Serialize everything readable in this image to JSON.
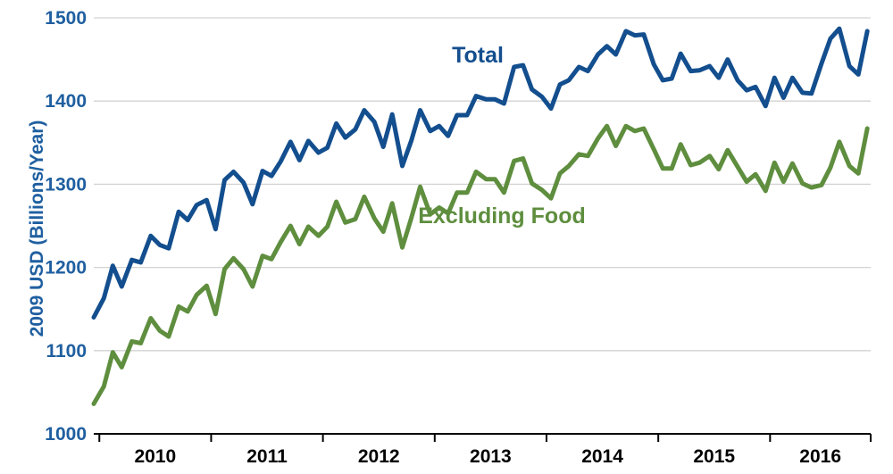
{
  "chart_data": {
    "type": "line",
    "title": "",
    "xlabel": "",
    "ylabel": "2009 USD (Billions/Year)",
    "ylim": [
      1000,
      1500
    ],
    "yticks": [
      "1000",
      "1100",
      "1200",
      "1300",
      "1400",
      "1500"
    ],
    "x_categories": [
      "2010",
      "2011",
      "2012",
      "2013",
      "2014",
      "2015",
      "2016"
    ],
    "x_range": [
      2009.95,
      2016.9
    ],
    "grid": true,
    "colors": {
      "total": "#134e8e",
      "excluding_food": "#5e8e3e",
      "axis_text": "#1f5fa0",
      "grid": "#d3d3d3"
    },
    "series": [
      {
        "name": "Total",
        "color": "#134e8e",
        "x": [
          2009.95,
          2010.04,
          2010.12,
          2010.2,
          2010.29,
          2010.37,
          2010.46,
          2010.54,
          2010.62,
          2010.71,
          2010.79,
          2010.87,
          2010.96,
          2011.04,
          2011.12,
          2011.2,
          2011.29,
          2011.37,
          2011.46,
          2011.54,
          2011.62,
          2011.71,
          2011.79,
          2011.87,
          2011.96,
          2012.04,
          2012.12,
          2012.2,
          2012.29,
          2012.37,
          2012.46,
          2012.54,
          2012.62,
          2012.71,
          2012.79,
          2012.87,
          2012.96,
          2013.04,
          2013.12,
          2013.2,
          2013.29,
          2013.37,
          2013.46,
          2013.54,
          2013.62,
          2013.71,
          2013.79,
          2013.87,
          2013.96,
          2014.04,
          2014.12,
          2014.2,
          2014.29,
          2014.37,
          2014.46,
          2014.54,
          2014.62,
          2014.71,
          2014.79,
          2014.87,
          2014.96,
          2015.04,
          2015.12,
          2015.2,
          2015.29,
          2015.37,
          2015.46,
          2015.54,
          2015.62,
          2015.71,
          2015.79,
          2015.87,
          2015.96,
          2016.04,
          2016.12,
          2016.2,
          2016.29,
          2016.37,
          2016.46,
          2016.54,
          2016.62,
          2016.71,
          2016.79,
          2016.87
        ],
        "values": [
          1140,
          1163,
          1202,
          1177,
          1209,
          1206,
          1238,
          1227,
          1223,
          1267,
          1257,
          1275,
          1281,
          1246,
          1305,
          1315,
          1302,
          1276,
          1316,
          1310,
          1327,
          1351,
          1329,
          1352,
          1338,
          1344,
          1373,
          1356,
          1366,
          1389,
          1375,
          1345,
          1384,
          1322,
          1352,
          1389,
          1364,
          1370,
          1358,
          1383,
          1383,
          1406,
          1402,
          1402,
          1397,
          1441,
          1443,
          1414,
          1405,
          1391,
          1420,
          1425,
          1441,
          1436,
          1456,
          1466,
          1456,
          1484,
          1479,
          1480,
          1444,
          1425,
          1427,
          1457,
          1436,
          1437,
          1442,
          1428,
          1450,
          1425,
          1413,
          1417,
          1394,
          1428,
          1404,
          1428,
          1410,
          1409,
          1445,
          1475,
          1487,
          1442,
          1432,
          1484
        ]
      },
      {
        "name": "Excluding Food",
        "color": "#5e8e3e",
        "x": [
          2009.95,
          2010.04,
          2010.12,
          2010.2,
          2010.29,
          2010.37,
          2010.46,
          2010.54,
          2010.62,
          2010.71,
          2010.79,
          2010.87,
          2010.96,
          2011.04,
          2011.12,
          2011.2,
          2011.29,
          2011.37,
          2011.46,
          2011.54,
          2011.62,
          2011.71,
          2011.79,
          2011.87,
          2011.96,
          2012.04,
          2012.12,
          2012.2,
          2012.29,
          2012.37,
          2012.46,
          2012.54,
          2012.62,
          2012.71,
          2012.79,
          2012.87,
          2012.96,
          2013.04,
          2013.12,
          2013.2,
          2013.29,
          2013.37,
          2013.46,
          2013.54,
          2013.62,
          2013.71,
          2013.79,
          2013.87,
          2013.96,
          2014.04,
          2014.12,
          2014.2,
          2014.29,
          2014.37,
          2014.46,
          2014.54,
          2014.62,
          2014.71,
          2014.79,
          2014.87,
          2014.96,
          2015.04,
          2015.12,
          2015.2,
          2015.29,
          2015.37,
          2015.46,
          2015.54,
          2015.62,
          2015.71,
          2015.79,
          2015.87,
          2015.96,
          2016.04,
          2016.12,
          2016.2,
          2016.29,
          2016.37,
          2016.46,
          2016.54,
          2016.62,
          2016.71,
          2016.79,
          2016.87
        ],
        "values": [
          1036,
          1057,
          1098,
          1080,
          1111,
          1109,
          1139,
          1124,
          1117,
          1153,
          1147,
          1167,
          1178,
          1144,
          1198,
          1211,
          1198,
          1177,
          1214,
          1210,
          1230,
          1250,
          1228,
          1249,
          1238,
          1249,
          1279,
          1254,
          1258,
          1285,
          1259,
          1243,
          1277,
          1224,
          1259,
          1297,
          1264,
          1272,
          1265,
          1290,
          1290,
          1315,
          1306,
          1306,
          1290,
          1328,
          1331,
          1301,
          1293,
          1283,
          1313,
          1322,
          1336,
          1334,
          1355,
          1370,
          1346,
          1370,
          1364,
          1367,
          1342,
          1319,
          1319,
          1348,
          1323,
          1326,
          1334,
          1318,
          1341,
          1321,
          1303,
          1312,
          1292,
          1326,
          1303,
          1325,
          1301,
          1296,
          1299,
          1320,
          1351,
          1322,
          1313,
          1367
        ]
      }
    ],
    "annotations": [
      "Total",
      "Excluding Food"
    ]
  }
}
